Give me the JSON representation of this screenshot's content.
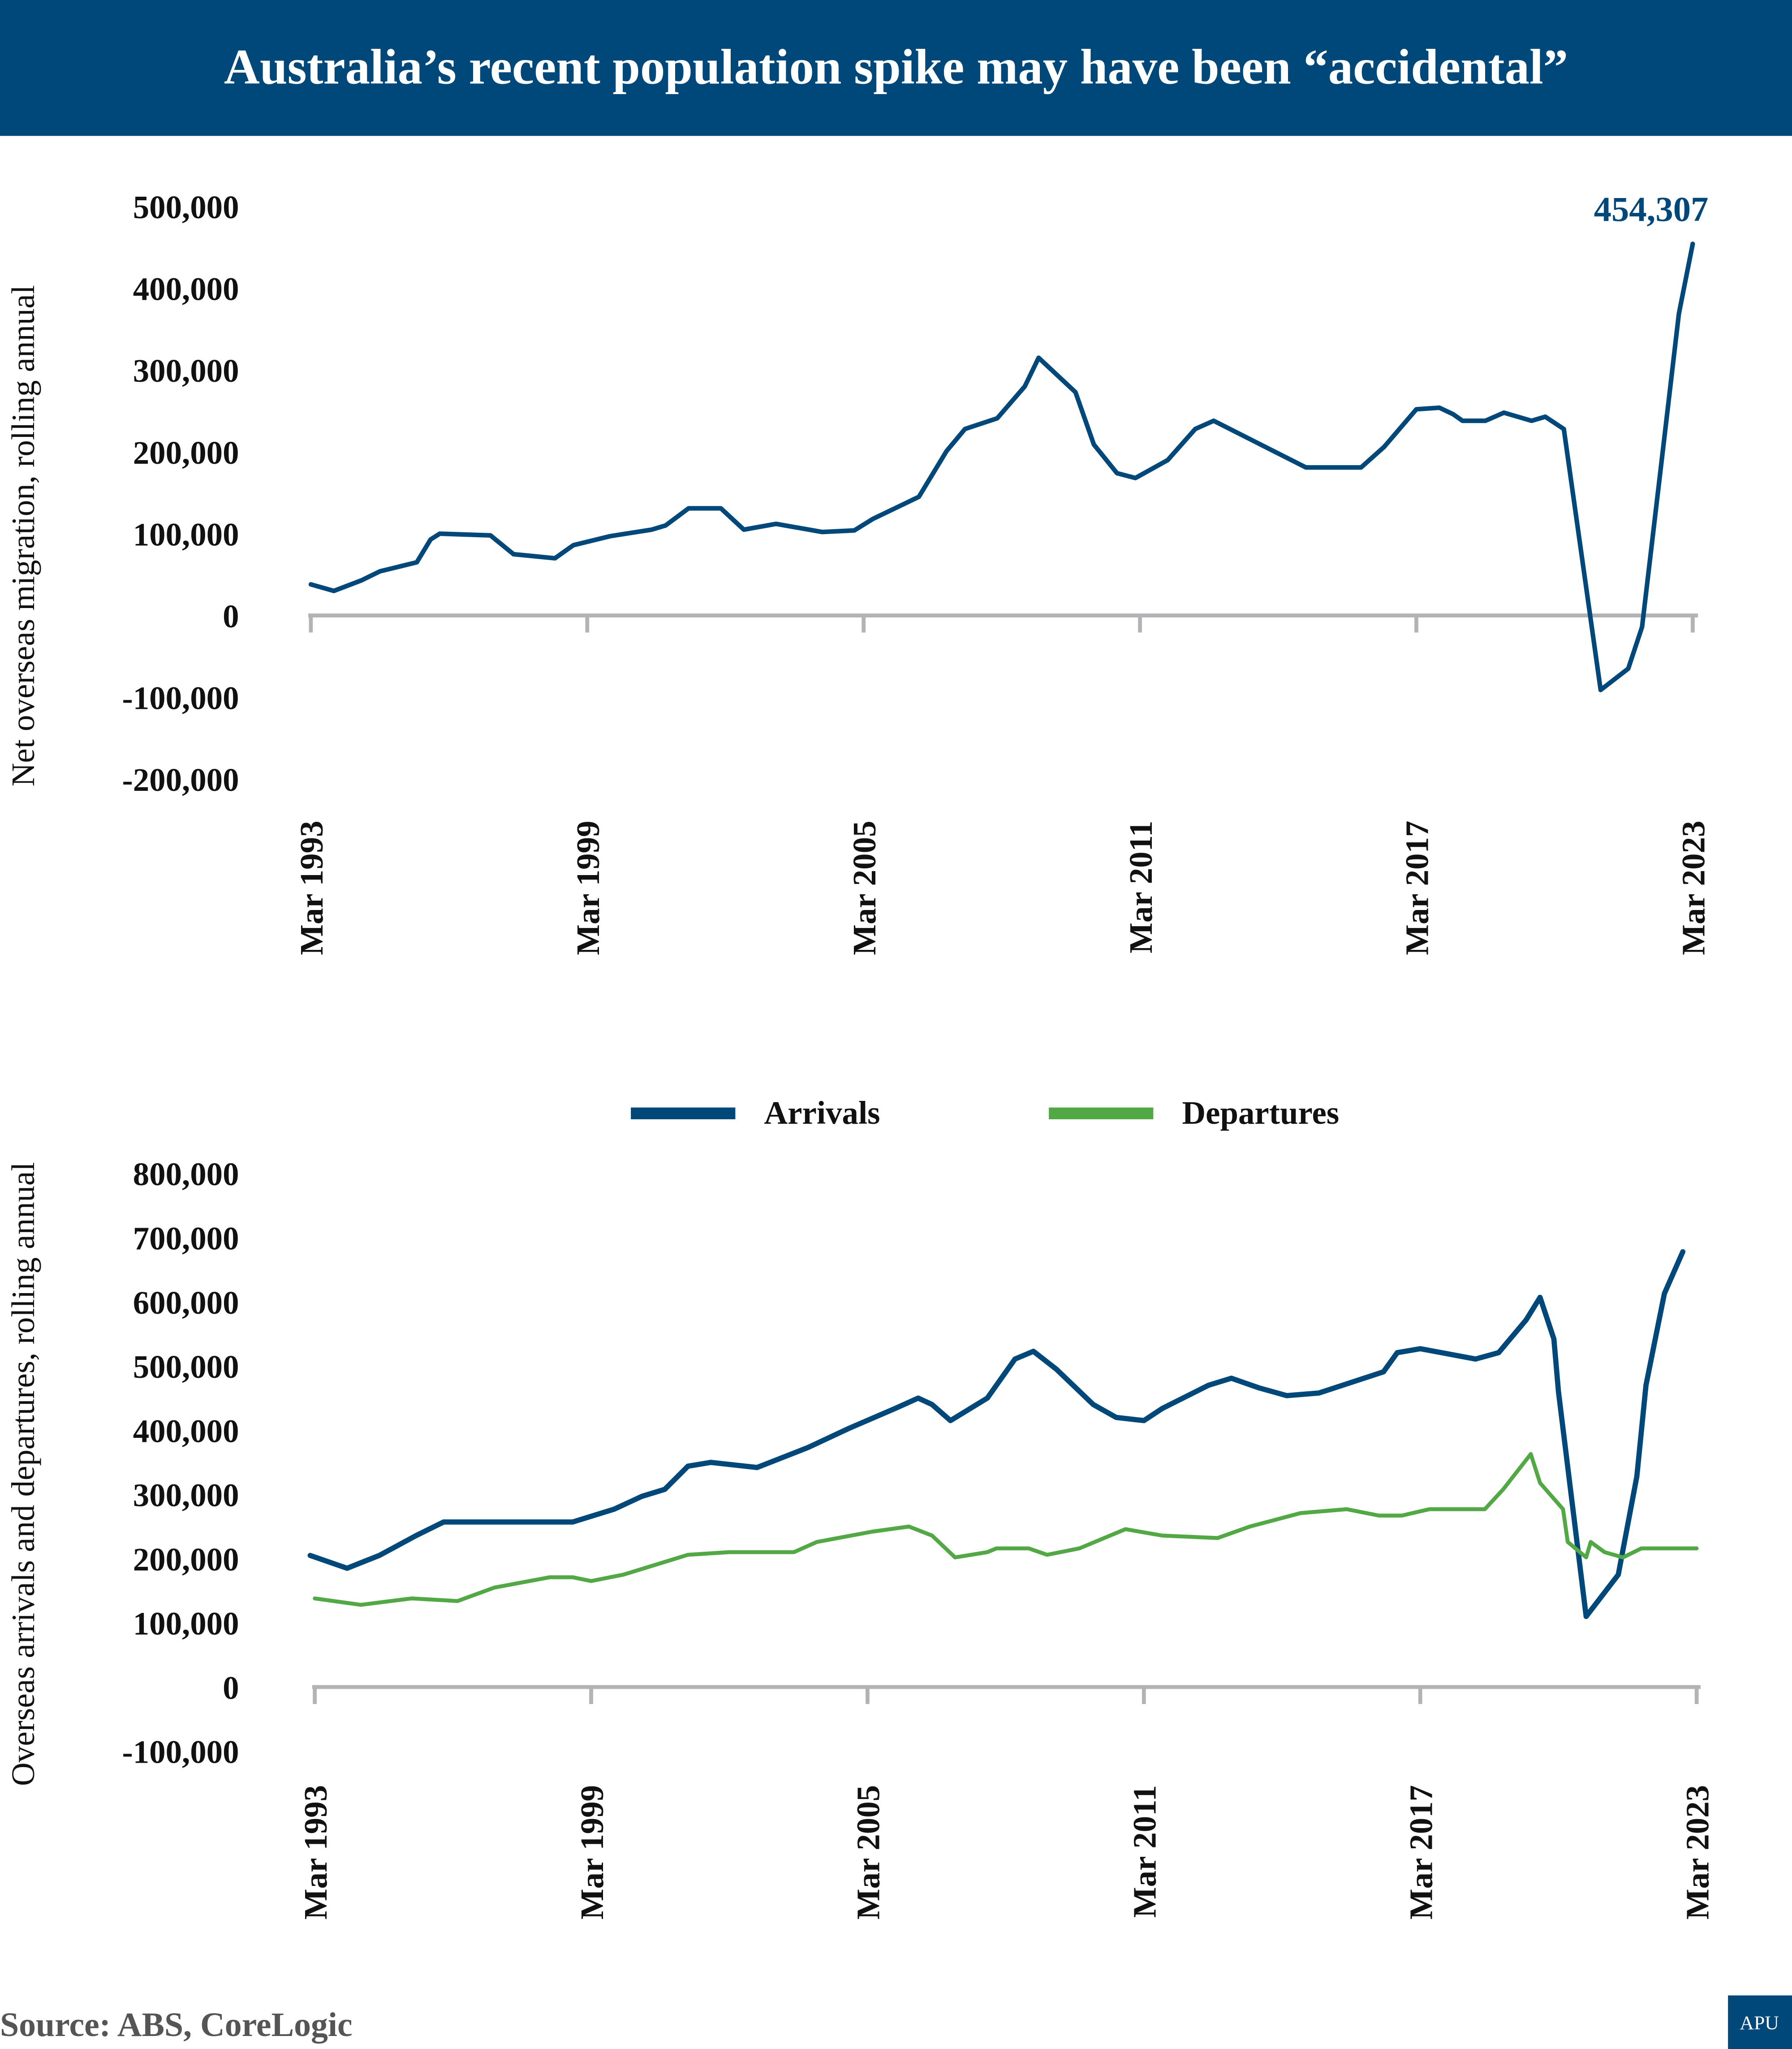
{
  "header": {
    "title": "Australia’s recent population spike may have been “accidental”"
  },
  "colors": {
    "header_bg": "#00477a",
    "arrivals": "#00477a",
    "departures": "#52a844",
    "axis": "#b3b3b6",
    "net": "#00477a"
  },
  "source": "Source: ABS, CoreLogic",
  "logo": "APU",
  "chart_data": [
    {
      "type": "line",
      "title": "",
      "ylabel": "Net overseas migration, rolling annual",
      "ylim": [
        -200000,
        500000
      ],
      "yticks": [
        500000,
        400000,
        300000,
        200000,
        100000,
        0,
        -100000,
        -200000
      ],
      "ytick_labels": [
        "500,000",
        "400,000",
        "300,000",
        "200,000",
        "100,000",
        "0",
        "-100,000",
        "-200,000"
      ],
      "xlim": [
        1993.0,
        2023.0
      ],
      "xticks": [
        1993,
        1999,
        2005,
        2011,
        2017,
        2023
      ],
      "xtick_labels": [
        "Mar 1993",
        "Mar 1999",
        "Mar 2005",
        "Mar 2011",
        "Mar 2017",
        "Mar 2023"
      ],
      "annotation": "454,307",
      "series": [
        {
          "x": [
            1993.0,
            1993.5,
            1994.1,
            1994.5,
            1995.3,
            1995.6,
            1995.8,
            1996.9,
            1997.4,
            1998.3,
            1998.7,
            1999.5,
            2000.4,
            2000.7,
            2001.2,
            2001.9,
            2002.4,
            2003.1,
            2004.1,
            2004.8,
            2005.2,
            2006.2,
            2006.8,
            2007.2,
            2007.9,
            2008.5,
            2008.8,
            2009.6,
            2010.0,
            2010.5,
            2010.9,
            2011.6,
            2012.2,
            2012.6,
            2013.9,
            2014.6,
            2015.8,
            2016.3,
            2017.0,
            2017.5,
            2017.8,
            2018.0,
            2018.5,
            2018.9,
            2019.5,
            2019.8,
            2020.2,
            2021.0,
            2021.6,
            2021.9,
            2022.3,
            2022.7,
            2023.0
          ],
          "y": [
            38000,
            30000,
            43000,
            54000,
            65000,
            93000,
            100000,
            98000,
            75000,
            70000,
            86000,
            97000,
            105000,
            110000,
            131000,
            131000,
            105000,
            112000,
            102000,
            104000,
            118000,
            145000,
            201000,
            228000,
            241000,
            280000,
            315000,
            273000,
            209000,
            174000,
            168000,
            190000,
            228000,
            238000,
            201000,
            181000,
            181000,
            206000,
            252000,
            254000,
            246000,
            238000,
            238000,
            248000,
            238000,
            243000,
            228000,
            -91000,
            -65000,
            -14000,
            177000,
            369000,
            454307
          ]
        }
      ]
    },
    {
      "type": "line",
      "title": "",
      "ylabel": "Overseas arrivals and departures, rolling annual",
      "ylim": [
        -100000,
        800000
      ],
      "yticks": [
        800000,
        700000,
        600000,
        500000,
        400000,
        300000,
        200000,
        100000,
        0,
        -100000
      ],
      "ytick_labels": [
        "800,000",
        "700,000",
        "600,000",
        "500,000",
        "400,000",
        "300,000",
        "200,000",
        "100,000",
        "0",
        "-100,000"
      ],
      "xlim": [
        1993.0,
        2023.0
      ],
      "xticks": [
        1993,
        1999,
        2005,
        2011,
        2017,
        2023
      ],
      "xtick_labels": [
        "Mar 1993",
        "Mar 1999",
        "Mar 2005",
        "Mar 2011",
        "Mar 2017",
        "Mar 2023"
      ],
      "legend": "top-center",
      "series": [
        {
          "name": "Arrivals",
          "x": [
            1992.9,
            1993.7,
            1994.4,
            1995.2,
            1995.8,
            1998.6,
            1999.5,
            2000.1,
            2000.6,
            2001.1,
            2001.6,
            2002.6,
            2003.7,
            2004.6,
            2005.6,
            2006.1,
            2006.4,
            2006.8,
            2007.6,
            2008.2,
            2008.6,
            2009.1,
            2009.9,
            2010.4,
            2011.0,
            2011.4,
            2012.4,
            2012.9,
            2013.5,
            2014.1,
            2014.8,
            2016.2,
            2016.5,
            2017.0,
            2018.2,
            2018.7,
            2019.3,
            2019.6,
            2019.9,
            2020.0,
            2020.6,
            2021.3,
            2021.7,
            2021.9,
            2022.3,
            2022.7
          ],
          "y": [
            205000,
            185000,
            205000,
            236000,
            257000,
            257000,
            277000,
            297000,
            308000,
            344000,
            350000,
            342000,
            373000,
            403000,
            434000,
            450000,
            440000,
            415000,
            450000,
            511000,
            523000,
            495000,
            440000,
            420000,
            415000,
            434000,
            470000,
            481000,
            466000,
            454000,
            458000,
            491000,
            521000,
            527000,
            511000,
            521000,
            572000,
            607000,
            542000,
            460000,
            110000,
            175000,
            328000,
            470000,
            613000,
            678000
          ]
        },
        {
          "name": "Departures",
          "x": [
            1993.0,
            1994.0,
            1995.1,
            1996.1,
            1996.9,
            1998.1,
            1998.6,
            1999.0,
            1999.7,
            2001.1,
            2002.0,
            2003.4,
            2003.9,
            2005.1,
            2005.9,
            2006.4,
            2006.9,
            2007.6,
            2007.8,
            2008.5,
            2008.9,
            2009.6,
            2010.6,
            2011.4,
            2012.6,
            2013.3,
            2014.4,
            2015.4,
            2016.1,
            2016.6,
            2017.2,
            2017.8,
            2018.4,
            2018.8,
            2019.4,
            2019.6,
            2020.1,
            2020.2,
            2020.6,
            2020.7,
            2021.0,
            2021.4,
            2021.8,
            2023.0
          ],
          "y": [
            138000,
            128000,
            138000,
            134000,
            155000,
            171000,
            171000,
            165000,
            175000,
            206000,
            210000,
            210000,
            226000,
            242000,
            250000,
            236000,
            202000,
            210000,
            216000,
            216000,
            206000,
            216000,
            246000,
            236000,
            232000,
            250000,
            271000,
            277000,
            267000,
            267000,
            277000,
            277000,
            277000,
            308000,
            363000,
            318000,
            277000,
            226000,
            202000,
            226000,
            210000,
            202000,
            216000,
            216000
          ]
        }
      ]
    }
  ]
}
